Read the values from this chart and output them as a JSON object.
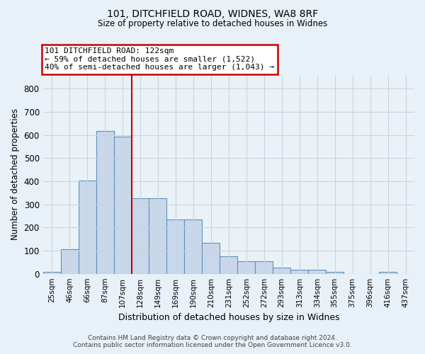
{
  "title_line1": "101, DITCHFIELD ROAD, WIDNES, WA8 8RF",
  "title_line2": "Size of property relative to detached houses in Widnes",
  "xlabel": "Distribution of detached houses by size in Widnes",
  "ylabel": "Number of detached properties",
  "footer_line1": "Contains HM Land Registry data © Crown copyright and database right 2024.",
  "footer_line2": "Contains public sector information licensed under the Open Government Licence v3.0.",
  "bar_labels": [
    "25sqm",
    "46sqm",
    "66sqm",
    "87sqm",
    "107sqm",
    "128sqm",
    "149sqm",
    "169sqm",
    "190sqm",
    "210sqm",
    "231sqm",
    "252sqm",
    "272sqm",
    "293sqm",
    "313sqm",
    "334sqm",
    "355sqm",
    "375sqm",
    "396sqm",
    "416sqm",
    "437sqm"
  ],
  "bar_heights": [
    7,
    107,
    402,
    617,
    593,
    328,
    328,
    235,
    235,
    135,
    77,
    53,
    53,
    27,
    18,
    18,
    9,
    0,
    0,
    9,
    0
  ],
  "bar_color": "#c8d8ea",
  "bar_edge_color": "#6090b8",
  "annotation_text": "101 DITCHFIELD ROAD: 122sqm\n← 59% of detached houses are smaller (1,522)\n40% of semi-detached houses are larger (1,043) →",
  "annotation_box_color": "white",
  "annotation_box_edge_color": "#cc0000",
  "vline_x_index": 5,
  "vline_color": "#cc0000",
  "ylim": [
    0,
    860
  ],
  "yticks": [
    0,
    100,
    200,
    300,
    400,
    500,
    600,
    700,
    800
  ],
  "grid_color": "#c8d4e0",
  "bg_color": "#e8f0f8",
  "plot_bg_color": "#eaf2f8"
}
